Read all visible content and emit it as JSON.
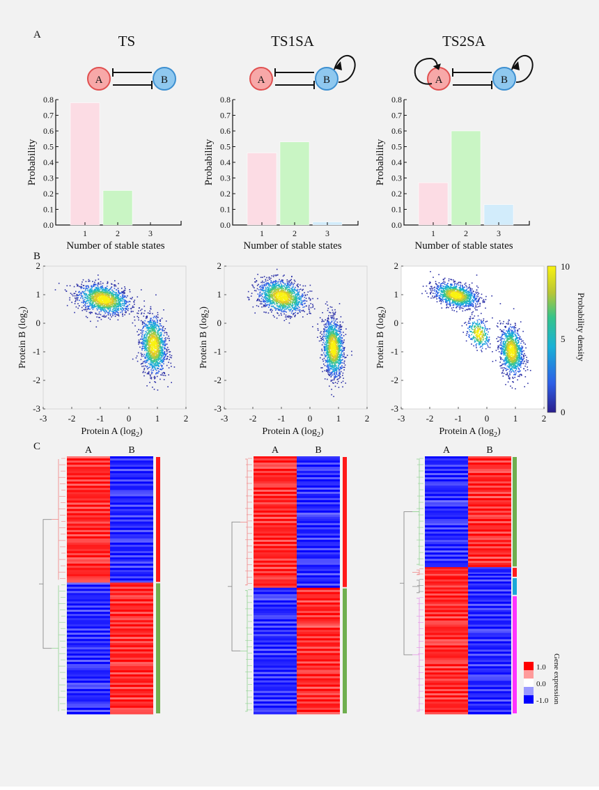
{
  "colors": {
    "page_bg": "#f2f2f2",
    "node_a_fill": "#f7a8a8",
    "node_a_stroke": "#e05050",
    "node_b_fill": "#8fc8ef",
    "node_b_stroke": "#3d8fd0",
    "bar_1": "#fcdce4",
    "bar_2": "#c9f5c4",
    "bar_3": "#d2ecfb",
    "heat_red": "#ff0000",
    "heat_blue": "#0000ff",
    "cluster_red": "#ff1a1a",
    "cluster_green": "#6fae4e",
    "cluster_cyan": "#19a8d8",
    "cluster_magenta": "#ff33ff",
    "tree_red": "#f08080",
    "tree_green": "#8ed18e",
    "tree_grey": "#8a8a8a",
    "tree_magenta": "#e58fe5"
  },
  "panel_labels": {
    "a": "A",
    "b": "B",
    "c": "C"
  },
  "network": {
    "node_a": "A",
    "node_b": "B",
    "motifs": [
      {
        "title": "TS",
        "self_loop_a": false,
        "self_loop_b": false
      },
      {
        "title": "TS1SA",
        "self_loop_a": false,
        "self_loop_b": true
      },
      {
        "title": "TS2SA",
        "self_loop_a": true,
        "self_loop_b": true
      }
    ]
  },
  "chart_data": [
    {
      "type": "bar",
      "title": "TS",
      "categories": [
        "1",
        "2",
        "3"
      ],
      "values": [
        0.78,
        0.22,
        0.0
      ],
      "xlabel": "Number of stable states",
      "ylabel": "Probability",
      "ylim": [
        0,
        0.8
      ],
      "yticks": [
        "0.0",
        "0.1",
        "0.2",
        "0.3",
        "0.4",
        "0.5",
        "0.6",
        "0.7",
        "0.8"
      ],
      "grid": false
    },
    {
      "type": "bar",
      "title": "TS1SA",
      "categories": [
        "1",
        "2",
        "3"
      ],
      "values": [
        0.46,
        0.53,
        0.02
      ],
      "xlabel": "Number of stable states",
      "ylabel": "Probability",
      "ylim": [
        0,
        0.8
      ],
      "yticks": [
        "0.0",
        "0.1",
        "0.2",
        "0.3",
        "0.4",
        "0.5",
        "0.6",
        "0.7",
        "0.8"
      ],
      "grid": false
    },
    {
      "type": "bar",
      "title": "TS2SA",
      "categories": [
        "1",
        "2",
        "3"
      ],
      "values": [
        0.27,
        0.6,
        0.13
      ],
      "xlabel": "Number of stable states",
      "ylabel": "Probability",
      "ylim": [
        0,
        0.8
      ],
      "yticks": [
        "0.0",
        "0.1",
        "0.2",
        "0.3",
        "0.4",
        "0.5",
        "0.6",
        "0.7",
        "0.8"
      ],
      "grid": false
    },
    {
      "type": "scatter",
      "xlabel": "Protein A (log",
      "xlabel_sub": "2",
      "xlabel_end": ")",
      "ylabel": "Protein B (log",
      "ylabel_sub": "2",
      "ylabel_end": ")",
      "xlim": [
        -3,
        2
      ],
      "ylim": [
        -3,
        2
      ],
      "xticks": [
        "-3",
        "-2",
        "-1",
        "0",
        "1",
        "2"
      ],
      "yticks": [
        "-3",
        "-2",
        "-1",
        "0",
        "1",
        "2"
      ],
      "clusters": [
        {
          "center": [
            -0.9,
            0.85
          ],
          "spread": [
            0.45,
            0.25
          ],
          "weight": 0.52
        },
        {
          "center": [
            0.85,
            -0.75
          ],
          "spread": [
            0.22,
            0.5
          ],
          "weight": 0.48
        }
      ]
    },
    {
      "type": "scatter",
      "xlabel": "Protein A (log",
      "xlabel_sub": "2",
      "xlabel_end": ")",
      "ylabel": "Protein B (log",
      "ylabel_sub": "2",
      "ylabel_end": ")",
      "xlim": [
        -3,
        2
      ],
      "ylim": [
        -3,
        2
      ],
      "xticks": [
        "-3",
        "-2",
        "-1",
        "0",
        "1",
        "2"
      ],
      "yticks": [
        "-3",
        "-2",
        "-1",
        "0",
        "1",
        "2"
      ],
      "clusters": [
        {
          "center": [
            -1.0,
            0.95
          ],
          "spread": [
            0.42,
            0.28
          ],
          "weight": 0.5
        },
        {
          "center": [
            0.8,
            -0.85
          ],
          "spread": [
            0.18,
            0.5
          ],
          "weight": 0.5
        }
      ]
    },
    {
      "type": "scatter",
      "xlabel": "Protein A (log",
      "xlabel_sub": "2",
      "xlabel_end": ")",
      "ylabel": "Protein B (log",
      "ylabel_sub": "2",
      "ylabel_end": ")",
      "xlim": [
        -3,
        2
      ],
      "ylim": [
        -3,
        2
      ],
      "xticks": [
        "-3",
        "-2",
        "-1",
        "0",
        "1",
        "2"
      ],
      "yticks": [
        "-3",
        "-2",
        "-1",
        "0",
        "1",
        "2"
      ],
      "colorbar": {
        "label": "Probability density",
        "min": 0,
        "max": 10,
        "ticks": [
          "0",
          "5",
          "10"
        ]
      },
      "clusters": [
        {
          "center": [
            -1.1,
            1.0
          ],
          "spread": [
            0.38,
            0.2
          ],
          "weight": 0.45
        },
        {
          "center": [
            -0.3,
            -0.35
          ],
          "spread": [
            0.2,
            0.25
          ],
          "weight": 0.12
        },
        {
          "center": [
            0.85,
            -0.95
          ],
          "spread": [
            0.2,
            0.42
          ],
          "weight": 0.43
        }
      ]
    },
    {
      "type": "heatmap",
      "columns": [
        "A",
        "B"
      ],
      "clusters": [
        {
          "name": "red",
          "fraction": 0.49
        },
        {
          "name": "green",
          "fraction": 0.51
        }
      ]
    },
    {
      "type": "heatmap",
      "columns": [
        "A",
        "B"
      ],
      "clusters": [
        {
          "name": "red",
          "fraction": 0.51
        },
        {
          "name": "green",
          "fraction": 0.49
        }
      ]
    },
    {
      "type": "heatmap",
      "columns": [
        "A",
        "B"
      ],
      "clusters": [
        {
          "name": "green",
          "fraction": 0.43
        },
        {
          "name": "red",
          "fraction": 0.04
        },
        {
          "name": "cyan",
          "fraction": 0.07
        },
        {
          "name": "magenta",
          "fraction": 0.46
        }
      ],
      "legend": {
        "label": "Gene expression",
        "ticks": [
          "1.0",
          "0.0",
          "-1.0"
        ],
        "min": -1.0,
        "max": 1.0
      }
    }
  ]
}
